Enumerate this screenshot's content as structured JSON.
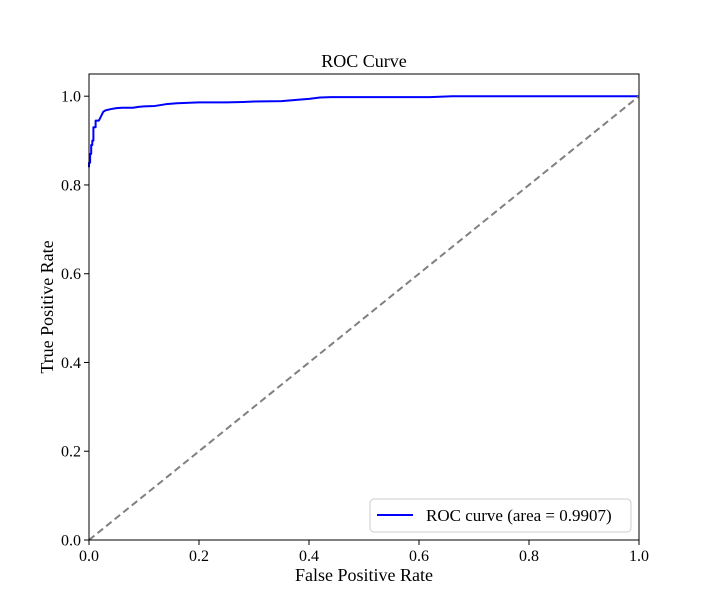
{
  "chart_data": {
    "type": "line",
    "title": "ROC Curve",
    "xlabel": "False Positive Rate",
    "ylabel": "True Positive Rate",
    "xlim": [
      0.0,
      1.0
    ],
    "ylim": [
      0.0,
      1.05
    ],
    "x_ticks": [
      "0.0",
      "0.2",
      "0.4",
      "0.6",
      "0.8",
      "1.0"
    ],
    "y_ticks": [
      "0.0",
      "0.2",
      "0.4",
      "0.6",
      "0.8",
      "1.0"
    ],
    "grid": false,
    "legend_position": "lower-right",
    "colors": {
      "roc_curve": "#0000ff",
      "baseline": "#808080",
      "axes": "#000000"
    },
    "series": [
      {
        "name": "ROC curve (area = 0.9907)",
        "style": "solid",
        "x": [
          0.0,
          0.0,
          0.002,
          0.002,
          0.004,
          0.004,
          0.006,
          0.006,
          0.008,
          0.008,
          0.012,
          0.012,
          0.018,
          0.022,
          0.026,
          0.03,
          0.04,
          0.05,
          0.06,
          0.08,
          0.09,
          0.1,
          0.12,
          0.14,
          0.16,
          0.2,
          0.25,
          0.28,
          0.3,
          0.35,
          0.38,
          0.4,
          0.42,
          0.44,
          0.5,
          0.62,
          0.66,
          0.8,
          1.0
        ],
        "y": [
          0.84,
          0.85,
          0.85,
          0.87,
          0.87,
          0.89,
          0.89,
          0.9,
          0.9,
          0.93,
          0.93,
          0.945,
          0.945,
          0.955,
          0.965,
          0.968,
          0.971,
          0.973,
          0.974,
          0.974,
          0.976,
          0.977,
          0.978,
          0.982,
          0.984,
          0.986,
          0.986,
          0.987,
          0.988,
          0.989,
          0.992,
          0.994,
          0.997,
          0.998,
          0.998,
          0.998,
          1.0,
          1.0,
          1.0
        ]
      },
      {
        "style": "dashed",
        "x": [
          0.0,
          1.0
        ],
        "y": [
          0.0,
          1.0
        ]
      }
    ]
  }
}
